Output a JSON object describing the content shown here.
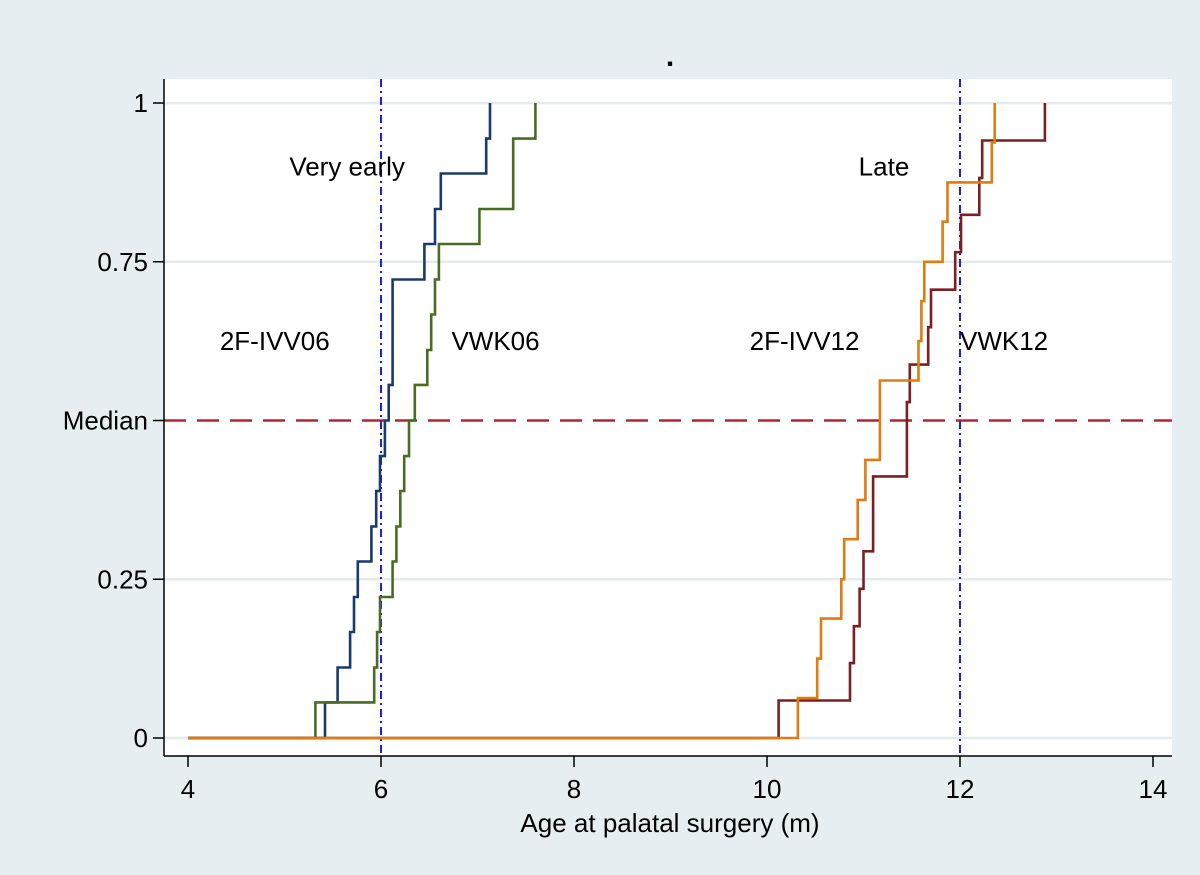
{
  "chart_data": {
    "type": "line",
    "step": true,
    "title": ".",
    "xlabel": "Age at palatal surgery (m)",
    "ylabel": "",
    "xlim": [
      4,
      14
    ],
    "ylim": [
      0,
      1
    ],
    "x_ticks": [
      4,
      6,
      8,
      10,
      12,
      14
    ],
    "y_ticks": [
      {
        "value": 0,
        "label": "0"
      },
      {
        "value": 0.25,
        "label": "0.25"
      },
      {
        "value": 0.5,
        "label": "Median"
      },
      {
        "value": 0.75,
        "label": "0.75"
      },
      {
        "value": 1,
        "label": "1"
      }
    ],
    "gridlines": [
      0,
      0.25,
      0.75,
      1
    ],
    "median_line": {
      "y": 0.5,
      "color": "#b0243a"
    },
    "vertical_refs": [
      {
        "x": 6,
        "color": "#1f1fe0"
      },
      {
        "x": 12,
        "color": "#1f1fe0"
      }
    ],
    "annotations": [
      {
        "text": "Very early",
        "x": 5.05,
        "y": 0.9
      },
      {
        "text": "Late",
        "x": 10.95,
        "y": 0.9
      },
      {
        "text": "2F-IVV06",
        "x": 4.33,
        "y": 0.625
      },
      {
        "text": "VWK06",
        "x": 6.73,
        "y": 0.625
      },
      {
        "text": "2F-IVV12",
        "x": 9.82,
        "y": 0.625
      },
      {
        "text": "VWK12",
        "x": 12.0,
        "y": 0.625
      }
    ],
    "series": [
      {
        "name": "2F-IVV06",
        "color": "#1a3a6b",
        "points": [
          [
            4,
            0
          ],
          [
            5.42,
            0
          ],
          [
            5.42,
            0.056
          ],
          [
            5.55,
            0.056
          ],
          [
            5.55,
            0.111
          ],
          [
            5.68,
            0.111
          ],
          [
            5.68,
            0.167
          ],
          [
            5.72,
            0.167
          ],
          [
            5.72,
            0.222
          ],
          [
            5.76,
            0.222
          ],
          [
            5.76,
            0.278
          ],
          [
            5.9,
            0.278
          ],
          [
            5.9,
            0.333
          ],
          [
            5.95,
            0.333
          ],
          [
            5.95,
            0.389
          ],
          [
            5.99,
            0.389
          ],
          [
            5.99,
            0.444
          ],
          [
            6.04,
            0.444
          ],
          [
            6.04,
            0.5
          ],
          [
            6.08,
            0.5
          ],
          [
            6.08,
            0.556
          ],
          [
            6.12,
            0.556
          ],
          [
            6.12,
            0.722
          ],
          [
            6.45,
            0.722
          ],
          [
            6.45,
            0.778
          ],
          [
            6.56,
            0.778
          ],
          [
            6.56,
            0.833
          ],
          [
            6.62,
            0.833
          ],
          [
            6.62,
            0.889
          ],
          [
            7.09,
            0.889
          ],
          [
            7.09,
            0.944
          ],
          [
            7.13,
            0.944
          ],
          [
            7.13,
            1
          ]
        ]
      },
      {
        "name": "VWK06",
        "color": "#4a6b23",
        "points": [
          [
            4,
            0
          ],
          [
            5.32,
            0
          ],
          [
            5.32,
            0.056
          ],
          [
            5.93,
            0.056
          ],
          [
            5.93,
            0.111
          ],
          [
            5.96,
            0.111
          ],
          [
            5.96,
            0.167
          ],
          [
            5.99,
            0.167
          ],
          [
            5.99,
            0.222
          ],
          [
            6.12,
            0.222
          ],
          [
            6.12,
            0.278
          ],
          [
            6.16,
            0.278
          ],
          [
            6.16,
            0.333
          ],
          [
            6.2,
            0.333
          ],
          [
            6.2,
            0.389
          ],
          [
            6.24,
            0.389
          ],
          [
            6.24,
            0.444
          ],
          [
            6.29,
            0.444
          ],
          [
            6.29,
            0.5
          ],
          [
            6.35,
            0.5
          ],
          [
            6.35,
            0.556
          ],
          [
            6.48,
            0.556
          ],
          [
            6.48,
            0.611
          ],
          [
            6.52,
            0.611
          ],
          [
            6.52,
            0.667
          ],
          [
            6.56,
            0.667
          ],
          [
            6.56,
            0.722
          ],
          [
            6.6,
            0.722
          ],
          [
            6.6,
            0.778
          ],
          [
            7.02,
            0.778
          ],
          [
            7.02,
            0.833
          ],
          [
            7.37,
            0.833
          ],
          [
            7.37,
            0.944
          ],
          [
            7.6,
            0.944
          ],
          [
            7.6,
            1
          ]
        ]
      },
      {
        "name": "VWK12",
        "color": "#7a1f22",
        "points": [
          [
            4,
            0
          ],
          [
            10.12,
            0
          ],
          [
            10.12,
            0.059
          ],
          [
            10.86,
            0.059
          ],
          [
            10.86,
            0.118
          ],
          [
            10.9,
            0.118
          ],
          [
            10.9,
            0.176
          ],
          [
            10.96,
            0.176
          ],
          [
            10.96,
            0.235
          ],
          [
            11.0,
            0.235
          ],
          [
            11.0,
            0.294
          ],
          [
            11.1,
            0.294
          ],
          [
            11.1,
            0.412
          ],
          [
            11.45,
            0.412
          ],
          [
            11.45,
            0.529
          ],
          [
            11.48,
            0.529
          ],
          [
            11.48,
            0.588
          ],
          [
            11.67,
            0.588
          ],
          [
            11.67,
            0.647
          ],
          [
            11.7,
            0.647
          ],
          [
            11.7,
            0.706
          ],
          [
            11.95,
            0.706
          ],
          [
            11.95,
            0.765
          ],
          [
            12.01,
            0.765
          ],
          [
            12.01,
            0.824
          ],
          [
            12.2,
            0.824
          ],
          [
            12.2,
            0.882
          ],
          [
            12.23,
            0.882
          ],
          [
            12.23,
            0.941
          ],
          [
            12.88,
            0.941
          ],
          [
            12.88,
            1
          ]
        ]
      },
      {
        "name": "2F-IVV12",
        "color": "#e07b10",
        "points": [
          [
            4,
            0
          ],
          [
            10.32,
            0
          ],
          [
            10.32,
            0.063
          ],
          [
            10.52,
            0.063
          ],
          [
            10.52,
            0.125
          ],
          [
            10.56,
            0.125
          ],
          [
            10.56,
            0.188
          ],
          [
            10.77,
            0.188
          ],
          [
            10.77,
            0.25
          ],
          [
            10.8,
            0.25
          ],
          [
            10.8,
            0.313
          ],
          [
            10.94,
            0.313
          ],
          [
            10.94,
            0.375
          ],
          [
            11.02,
            0.375
          ],
          [
            11.02,
            0.438
          ],
          [
            11.17,
            0.438
          ],
          [
            11.17,
            0.563
          ],
          [
            11.57,
            0.563
          ],
          [
            11.57,
            0.625
          ],
          [
            11.6,
            0.625
          ],
          [
            11.6,
            0.688
          ],
          [
            11.63,
            0.688
          ],
          [
            11.63,
            0.75
          ],
          [
            11.82,
            0.75
          ],
          [
            11.82,
            0.813
          ],
          [
            11.87,
            0.813
          ],
          [
            11.87,
            0.875
          ],
          [
            12.33,
            0.875
          ],
          [
            12.33,
            0.938
          ],
          [
            12.36,
            0.938
          ],
          [
            12.36,
            1
          ]
        ]
      }
    ]
  }
}
